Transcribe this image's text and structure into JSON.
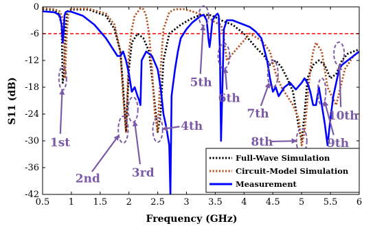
{
  "chart_data": {
    "type": "line",
    "xlabel": "Frequency (GHz)",
    "ylabel": "S11 (dB)",
    "xlim": [
      0.5,
      6
    ],
    "ylim": [
      -42,
      0
    ],
    "xticks": [
      "0.5",
      "1",
      "1.5",
      "2",
      "2.5",
      "3",
      "3.5",
      "4",
      "4.5",
      "5",
      "5.5",
      "6"
    ],
    "yticks": [
      "0",
      "-6",
      "-12",
      "-18",
      "-24",
      "-30",
      "-36",
      "-42"
    ],
    "grid": false,
    "reference_line": {
      "y": -6,
      "color": "#ff0000",
      "style": "dashed"
    },
    "legend_position": "bottom-right",
    "series": [
      {
        "name": "Full-Wave Simulation",
        "color": "#000000",
        "style": "dotted",
        "x": [
          0.5,
          0.7,
          0.78,
          0.83,
          0.85,
          0.87,
          0.9,
          0.93,
          1.0,
          1.3,
          1.6,
          1.75,
          1.85,
          1.9,
          1.95,
          2.0,
          2.05,
          2.15,
          2.25,
          2.35,
          2.42,
          2.5,
          2.55,
          2.6,
          2.7,
          2.9,
          3.1,
          3.25,
          3.4,
          3.5,
          3.6,
          3.8,
          4.0,
          4.2,
          4.35,
          4.45,
          4.55,
          4.65,
          4.75,
          4.85,
          4.95,
          5.0,
          5.05,
          5.1,
          5.2,
          5.3,
          5.4,
          5.5,
          5.6,
          5.7,
          5.8,
          5.9,
          6.0
        ],
        "y": [
          -0.5,
          -0.7,
          -1.5,
          -4,
          -17,
          -15,
          -5,
          -1,
          -0.6,
          -0.6,
          -2,
          -5,
          -10,
          -18,
          -28,
          -14,
          -8,
          -6,
          -7,
          -10,
          -18,
          -28,
          -24,
          -12,
          -6,
          -4,
          -2.5,
          -1.8,
          -1.8,
          -2.3,
          -3,
          -4,
          -6,
          -9,
          -11,
          -13,
          -12,
          -13.5,
          -16,
          -19,
          -27,
          -30,
          -24,
          -16,
          -13,
          -12,
          -13,
          -16,
          -15,
          -12,
          -10.5,
          -10,
          -9.5
        ]
      },
      {
        "name": "Circuit-Model Simulation",
        "color": "#b5501e",
        "style": "dotted",
        "x": [
          0.5,
          0.7,
          0.8,
          0.86,
          0.89,
          0.92,
          0.95,
          1.0,
          1.3,
          1.6,
          1.75,
          1.85,
          1.9,
          1.95,
          2.0,
          2.05,
          2.1,
          2.2,
          2.25,
          2.3,
          2.35,
          2.4,
          2.45,
          2.5,
          2.55,
          2.6,
          2.7,
          2.8,
          2.95,
          3.1,
          3.25,
          3.4,
          3.5,
          3.6,
          3.65,
          3.7,
          3.9,
          4.1,
          4.3,
          4.45,
          4.55,
          4.65,
          4.75,
          4.85,
          4.95,
          5.0,
          5.05,
          5.15,
          5.2,
          5.25,
          5.35,
          5.45,
          5.6,
          5.75,
          5.9,
          6.0
        ],
        "y": [
          -0.3,
          -0.5,
          -1,
          -3,
          -16,
          -6,
          -1,
          -0.4,
          -0.4,
          -1.5,
          -4,
          -10,
          -20,
          -28,
          -10,
          -5,
          -2,
          -0.3,
          -0.5,
          -2,
          -6,
          -14,
          -24,
          -28,
          -14,
          -5,
          -1.2,
          -0.5,
          -0.5,
          -1,
          -1.7,
          -2.5,
          -3.5,
          -4,
          -7,
          -12,
          -9,
          -6,
          -7.5,
          -10,
          -15,
          -18,
          -20,
          -22,
          -25,
          -31,
          -28,
          -14,
          -10,
          -8,
          -10,
          -18,
          -22,
          -14,
          -11,
          -10
        ]
      },
      {
        "name": "Measurement",
        "color": "#0000ff",
        "style": "solid",
        "x": [
          0.5,
          0.7,
          0.75,
          0.8,
          0.83,
          0.85,
          0.87,
          0.88,
          0.9,
          0.93,
          1.0,
          1.2,
          1.4,
          1.6,
          1.7,
          1.8,
          1.85,
          1.9,
          1.95,
          2.0,
          2.05,
          2.1,
          2.15,
          2.18,
          2.2,
          2.22,
          2.3,
          2.4,
          2.5,
          2.55,
          2.6,
          2.65,
          2.7,
          2.72,
          2.74,
          2.76,
          2.8,
          2.85,
          2.9,
          3.0,
          3.1,
          3.2,
          3.25,
          3.3,
          3.35,
          3.38,
          3.4,
          3.42,
          3.45,
          3.5,
          3.54,
          3.56,
          3.58,
          3.6,
          3.65,
          3.7,
          3.8,
          3.9,
          4.0,
          4.1,
          4.2,
          4.3,
          4.4,
          4.45,
          4.5,
          4.55,
          4.6,
          4.7,
          4.8,
          4.9,
          5.0,
          5.05,
          5.1,
          5.15,
          5.2,
          5.25,
          5.3,
          5.35,
          5.4,
          5.45,
          5.5,
          5.55,
          5.6,
          5.65,
          5.7,
          5.8,
          5.9,
          6.0
        ],
        "y": [
          -1,
          -1.2,
          -1.5,
          -2,
          -4,
          -8,
          -5,
          -2,
          -1.2,
          -1,
          -1.1,
          -2,
          -4,
          -7,
          -9,
          -11,
          -11,
          -10,
          -12,
          -15,
          -19,
          -18,
          -20,
          -21,
          -22,
          -12,
          -10,
          -11,
          -14,
          -18,
          -24,
          -27,
          -31,
          -42,
          -20,
          -18,
          -14,
          -10,
          -7,
          -5,
          -3.5,
          -2.5,
          -2,
          -1.8,
          -3,
          -7,
          -9,
          -7,
          -3,
          -2,
          -1.5,
          -2,
          -10,
          -30,
          -5,
          -3,
          -3,
          -3.5,
          -4,
          -4.5,
          -5.5,
          -7,
          -12,
          -16,
          -19,
          -18,
          -20,
          -18,
          -17,
          -18.5,
          -17,
          -16,
          -17,
          -19,
          -22,
          -22,
          -18,
          -22,
          -26,
          -31,
          -25,
          -20,
          -17,
          -14,
          -13,
          -12,
          -11,
          -10
        ]
      }
    ],
    "annotations": [
      {
        "text": "1st",
        "x": 0.85,
        "y": -16,
        "ring_rx": 0.065,
        "ring_ry": 2.6,
        "label_x": 0.63,
        "label_y": -31.2,
        "anchor": "start"
      },
      {
        "text": "2nd",
        "x": 1.9,
        "y": -27.5,
        "ring_rx": 0.085,
        "ring_ry": 3.0,
        "label_x": 1.07,
        "label_y": -39.3,
        "anchor": "start"
      },
      {
        "text": "3rd",
        "x": 2.07,
        "y": -23,
        "ring_rx": 0.085,
        "ring_ry": 2.8,
        "label_x": 2.05,
        "label_y": -38.0,
        "anchor": "start"
      },
      {
        "text": "4th",
        "x": 2.5,
        "y": -27.5,
        "ring_rx": 0.085,
        "ring_ry": 2.8,
        "label_x": 2.9,
        "label_y": -27.5,
        "anchor": "start"
      },
      {
        "text": "5th",
        "x": 3.3,
        "y": -2,
        "ring_rx": 0.085,
        "ring_ry": 2.2,
        "label_x": 3.06,
        "label_y": -17.8,
        "anchor": "start"
      },
      {
        "text": "6th",
        "x": 3.65,
        "y": -11,
        "ring_rx": 0.1,
        "ring_ry": 2.8,
        "label_x": 3.55,
        "label_y": -21.3,
        "anchor": "start"
      },
      {
        "text": "7th",
        "x": 4.5,
        "y": -15,
        "ring_rx": 0.09,
        "ring_ry": 3.0,
        "label_x": 4.05,
        "label_y": -24.8,
        "anchor": "start"
      },
      {
        "text": "8th",
        "x": 5.0,
        "y": -30,
        "ring_rx": 0.09,
        "ring_ry": 2.8,
        "label_x": 4.12,
        "label_y": -31.1,
        "anchor": "start"
      },
      {
        "text": "9th",
        "x": 5.35,
        "y": -19,
        "ring_rx": 0.07,
        "ring_ry": 3.0,
        "label_x": 5.44,
        "label_y": -31.4,
        "anchor": "start"
      },
      {
        "text": "10th",
        "x": 5.65,
        "y": -10.5,
        "ring_rx": 0.09,
        "ring_ry": 2.6,
        "label_x": 5.46,
        "label_y": -25.2,
        "anchor": "start"
      }
    ],
    "annotation_color": "#7b5aa6"
  }
}
